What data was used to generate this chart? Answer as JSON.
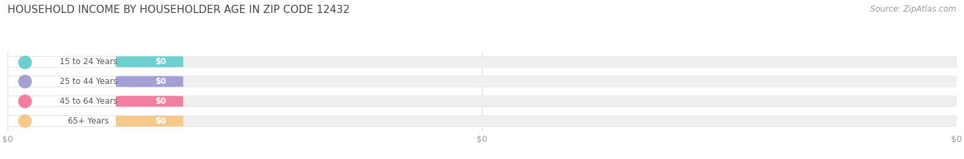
{
  "title": "HOUSEHOLD INCOME BY HOUSEHOLDER AGE IN ZIP CODE 12432",
  "source_text": "Source: ZipAtlas.com",
  "categories": [
    "15 to 24 Years",
    "25 to 44 Years",
    "45 to 64 Years",
    "65+ Years"
  ],
  "values": [
    0,
    0,
    0,
    0
  ],
  "bar_colors": [
    "#6ecfce",
    "#a49fd4",
    "#f07fa0",
    "#f5c98a"
  ],
  "circle_colors": [
    "#6ecfce",
    "#a49fd4",
    "#f07fa0",
    "#f5c98a"
  ],
  "background_color": "#ffffff",
  "bar_bg_color": "#efefef",
  "bar_bg_edge_color": "#e2e2e2",
  "label_bg_color": "#ffffff",
  "label_edge_color": "#e0e0e0",
  "title_fontsize": 11,
  "source_fontsize": 8.5,
  "category_fontsize": 8.5,
  "value_fontsize": 8.5,
  "tick_fontsize": 9,
  "tick_color": "#999999",
  "title_color": "#444444",
  "category_color": "#555555",
  "source_color": "#999999",
  "xticks": [
    0,
    0.5,
    1.0
  ],
  "tick_labels": [
    "$0",
    "$0",
    "$0"
  ]
}
